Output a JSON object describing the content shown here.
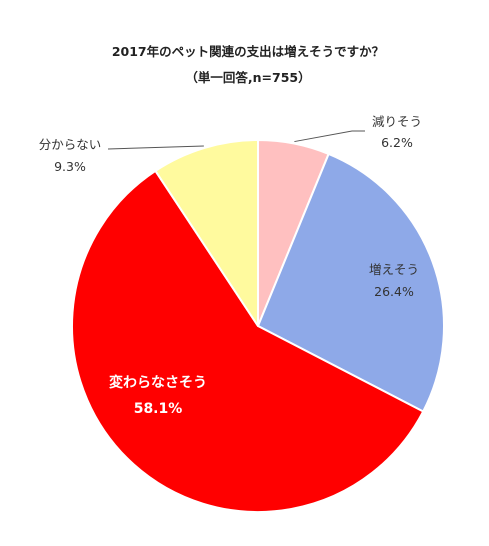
{
  "chart_data": {
    "type": "pie",
    "title": "2017年のペット関連の支出は増えそうですか？",
    "subtitle": "（単一回答,n=755）",
    "slices": [
      {
        "label": "減りそう",
        "value": 6.2,
        "value_label": "6.2%",
        "color": "#FFC0C0"
      },
      {
        "label": "増えそう",
        "value": 26.4,
        "value_label": "26.4%",
        "color": "#8EA9E8"
      },
      {
        "label": "変わらなさそう",
        "value": 58.1,
        "value_label": "58.1%",
        "color": "#FF0000"
      },
      {
        "label": "分からない",
        "value": 9.3,
        "value_label": "9.3%",
        "color": "#FFFA9E"
      }
    ],
    "start_angle": "12 o'clock",
    "direction": "clockwise",
    "legend": "none",
    "slice_border_color": "#ffffff"
  }
}
